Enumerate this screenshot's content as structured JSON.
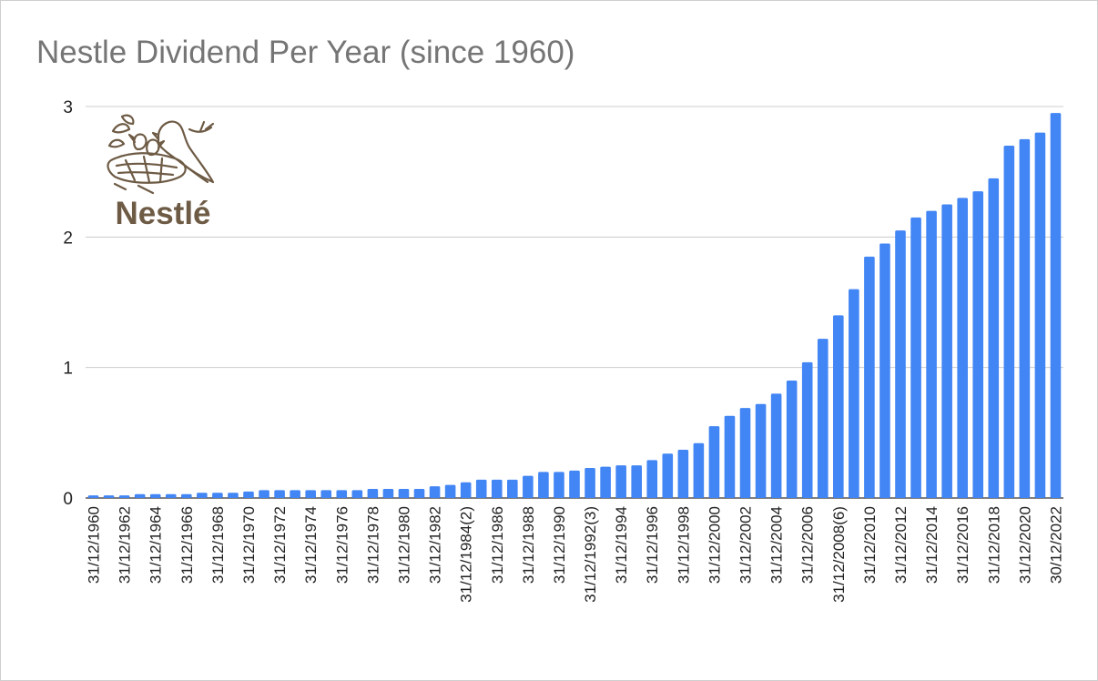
{
  "chart_data": {
    "type": "bar",
    "title": "Nestle Dividend Per Year (since 1960)",
    "xlabel": "",
    "ylabel": "",
    "ylim": [
      0,
      3
    ],
    "yticks": [
      "0",
      "1",
      "2",
      "3"
    ],
    "grid": true,
    "legend": "none",
    "bar_color": "#4285f4",
    "categories": [
      "31/12/1960",
      "31/12/1961",
      "31/12/1962",
      "31/12/1963",
      "31/12/1964",
      "31/12/1965",
      "31/12/1966",
      "31/12/1967",
      "31/12/1968",
      "31/12/1969",
      "31/12/1970",
      "31/12/1971",
      "31/12/1972",
      "31/12/1973",
      "31/12/1974",
      "31/12/1975",
      "31/12/1976",
      "31/12/1977",
      "31/12/1978",
      "31/12/1979",
      "31/12/1980",
      "31/12/1981",
      "31/12/1982",
      "31/12/1983",
      "31/12/1984(2)",
      "31/12/1985",
      "31/12/1986",
      "31/12/1987",
      "31/12/1988",
      "31/12/1989",
      "31/12/1990",
      "31/12/1991",
      "31/12/1992(3)",
      "31/12/1993",
      "31/12/1994",
      "31/12/1995",
      "31/12/1996",
      "31/12/1997",
      "31/12/1998",
      "31/12/1999",
      "31/12/2000",
      "31/12/2001",
      "31/12/2002",
      "31/12/2003",
      "31/12/2004",
      "31/12/2005",
      "31/12/2006",
      "31/12/2007",
      "31/12/2008(6)",
      "31/12/2009",
      "31/12/2010",
      "31/12/2011",
      "31/12/2012",
      "31/12/2013",
      "31/12/2014",
      "31/12/2015",
      "31/12/2016",
      "31/12/2017",
      "31/12/2018",
      "31/12/2019",
      "31/12/2020",
      "31/12/2021",
      "30/12/2022"
    ],
    "values": [
      0.02,
      0.02,
      0.02,
      0.03,
      0.03,
      0.03,
      0.03,
      0.04,
      0.04,
      0.04,
      0.05,
      0.06,
      0.06,
      0.06,
      0.06,
      0.06,
      0.06,
      0.06,
      0.07,
      0.07,
      0.07,
      0.07,
      0.09,
      0.1,
      0.12,
      0.14,
      0.14,
      0.14,
      0.17,
      0.2,
      0.2,
      0.21,
      0.23,
      0.24,
      0.25,
      0.25,
      0.29,
      0.34,
      0.37,
      0.42,
      0.55,
      0.63,
      0.69,
      0.72,
      0.8,
      0.9,
      1.04,
      1.22,
      1.4,
      1.6,
      1.85,
      1.95,
      2.05,
      2.15,
      2.2,
      2.25,
      2.3,
      2.35,
      2.45,
      2.7,
      2.75,
      2.8,
      2.95
    ]
  },
  "logo": {
    "text": "Nestlé",
    "color": "#6e5b45"
  }
}
